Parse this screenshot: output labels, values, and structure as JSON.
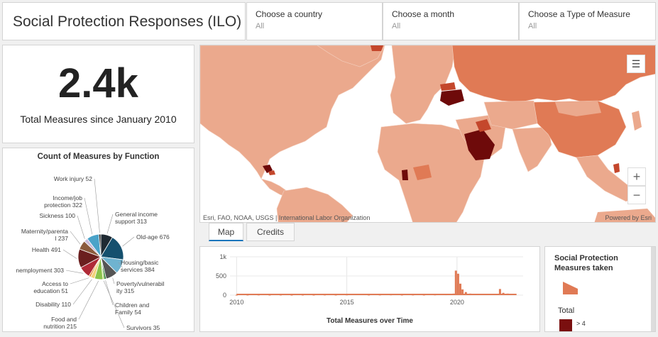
{
  "header": {
    "title": "Social Protection Responses (ILO)"
  },
  "filters": [
    {
      "label": "Choose a country",
      "value": "All"
    },
    {
      "label": "Choose a month",
      "value": "All"
    },
    {
      "label": "Choose a Type of Measure",
      "value": "All"
    }
  ],
  "kpi": {
    "value": "2.4k",
    "label": "Total Measures since January 2010"
  },
  "pie": {
    "title": "Count of Measures by Function",
    "slices": [
      {
        "name": "General income support",
        "value": 313,
        "color": "#1f2a33",
        "label1": "General income",
        "label2": "support 313"
      },
      {
        "name": "Old-age",
        "value": 676,
        "color": "#15506e",
        "label1": "Old-age 676",
        "label2": ""
      },
      {
        "name": "Housing/basic services",
        "value": 384,
        "color": "#6fb3d0",
        "label1": "Housing/basic",
        "label2": "services 384"
      },
      {
        "name": "Poverty/vulnerability",
        "value": 315,
        "color": "#555555",
        "label1": "Poverty/vulnerabil",
        "label2": "ity 315"
      },
      {
        "name": "Children and Family",
        "value": 54,
        "color": "#2e7d32",
        "label1": "Children and",
        "label2": "Family 54"
      },
      {
        "name": "Survivors",
        "value": 35,
        "color": "#9acd32",
        "label1": "Survivors 35",
        "label2": ""
      },
      {
        "name": "Food and nutrition",
        "value": 215,
        "color": "#8bc34a",
        "label1": "Food and",
        "label2": "nutrition 215"
      },
      {
        "name": "Disability",
        "value": 110,
        "color": "#f2d27a",
        "label1": "Disability 110",
        "label2": ""
      },
      {
        "name": "Access to education",
        "value": 51,
        "color": "#e88e3a",
        "label1": "Access to",
        "label2": "education 51"
      },
      {
        "name": "Unemployment",
        "value": 303,
        "color": "#b02a37",
        "label1": "nemployment 303",
        "label2": ""
      },
      {
        "name": "Health",
        "value": 491,
        "color": "#6b1f1f",
        "label1": "Health 491",
        "label2": ""
      },
      {
        "name": "Maternity/parental",
        "value": 237,
        "color": "#8b5a3c",
        "label1": "Maternity/parenta",
        "label2": "l 237"
      },
      {
        "name": "Sickness",
        "value": 100,
        "color": "#c8b9d8",
        "label1": "Sickness 100",
        "label2": ""
      },
      {
        "name": "Income/job protection",
        "value": 322,
        "color": "#4aa3c9",
        "label1": "Income/job",
        "label2": "protection 322"
      },
      {
        "name": "Work injury",
        "value": 52,
        "color": "#2a2a2a",
        "label1": "Work injury 52",
        "label2": ""
      }
    ]
  },
  "map": {
    "attribution": "Esri, FAO, NOAA, USGS | International Labor Organization",
    "powered": "Powered by Esri",
    "legend_icon": "list-icon",
    "zoom_in": "+",
    "zoom_out": "−",
    "colors": {
      "ocean": "#ffffff",
      "light": "#eba98d",
      "mid": "#e07a55",
      "dark": "#c4472c",
      "darkest": "#6e0a0a"
    }
  },
  "tabs": [
    {
      "label": "Map",
      "active": true
    },
    {
      "label": "Credits",
      "active": false
    }
  ],
  "chart_data": {
    "type": "bar",
    "title": "Total Measures over Time",
    "xlabel": "Total Measures over Time",
    "ylabel": "",
    "xticks": [
      "2010",
      "2015",
      "2020"
    ],
    "yticks": [
      "0",
      "500",
      "1k"
    ],
    "ylim": [
      0,
      1000
    ],
    "xlim": [
      2009.7,
      2023.0
    ],
    "bar_color": "#e07a55",
    "series": [
      {
        "values": [
          [
            2010.0,
            8
          ],
          [
            2010.5,
            10
          ],
          [
            2011.0,
            12
          ],
          [
            2011.5,
            9
          ],
          [
            2012.0,
            11
          ],
          [
            2012.5,
            8
          ],
          [
            2013.0,
            10
          ],
          [
            2013.5,
            9
          ],
          [
            2014.0,
            12
          ],
          [
            2014.5,
            10
          ],
          [
            2015.0,
            14
          ],
          [
            2015.5,
            22
          ],
          [
            2016.0,
            10
          ],
          [
            2016.5,
            12
          ],
          [
            2017.0,
            15
          ],
          [
            2017.5,
            10
          ],
          [
            2018.0,
            12
          ],
          [
            2018.5,
            10
          ],
          [
            2019.0,
            14
          ],
          [
            2019.5,
            18
          ],
          [
            2019.85,
            40
          ],
          [
            2019.95,
            640
          ],
          [
            2020.05,
            560
          ],
          [
            2020.15,
            300
          ],
          [
            2020.25,
            150
          ],
          [
            2020.4,
            80
          ],
          [
            2020.6,
            40
          ],
          [
            2020.9,
            30
          ],
          [
            2021.2,
            25
          ],
          [
            2021.5,
            20
          ],
          [
            2021.8,
            30
          ],
          [
            2021.95,
            160
          ],
          [
            2022.1,
            60
          ],
          [
            2022.3,
            40
          ],
          [
            2022.6,
            30
          ]
        ]
      }
    ]
  },
  "legend": {
    "title": "Social Protection Measures taken",
    "total_label": "Total",
    "gt_label": "> 4"
  }
}
